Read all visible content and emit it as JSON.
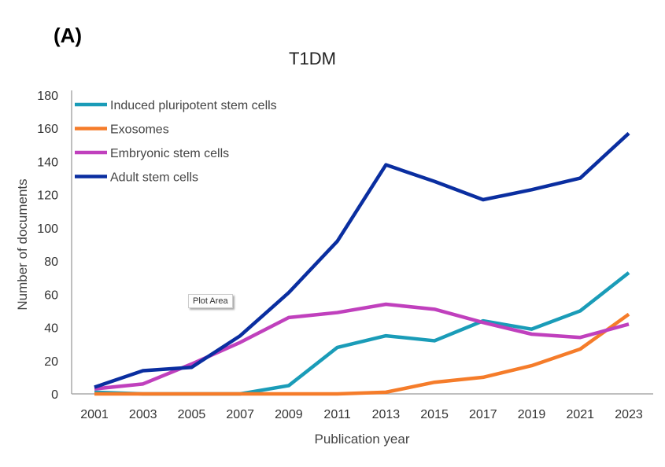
{
  "panel_label": "(A)",
  "tooltip": "Plot Area",
  "chart_data": {
    "type": "line",
    "title": "T1DM",
    "xlabel": "Publication year",
    "ylabel": "Number of documents",
    "x": [
      2001,
      2003,
      2005,
      2007,
      2009,
      2011,
      2013,
      2015,
      2017,
      2019,
      2021,
      2023
    ],
    "ylim": [
      0,
      180
    ],
    "yticks": [
      0,
      20,
      40,
      60,
      80,
      100,
      120,
      140,
      160,
      180
    ],
    "grid": false,
    "legend_position": "top-left",
    "series": [
      {
        "name": "Induced pluripotent stem cells",
        "color": "#1a9cb8",
        "values": [
          1,
          0,
          0,
          0,
          5,
          28,
          35,
          32,
          44,
          39,
          50,
          73
        ]
      },
      {
        "name": "Exosomes",
        "color": "#f57c2a",
        "values": [
          0,
          0,
          0,
          0,
          0,
          0,
          1,
          7,
          10,
          17,
          27,
          48
        ]
      },
      {
        "name": "Embryonic stem cells",
        "color": "#c040bd",
        "values": [
          3,
          6,
          18,
          31,
          46,
          49,
          54,
          51,
          43,
          36,
          34,
          42
        ]
      },
      {
        "name": "Adult stem cells",
        "color": "#0a2ea0",
        "values": [
          4,
          14,
          16,
          35,
          61,
          92,
          138,
          128,
          117,
          123,
          130,
          157
        ]
      }
    ]
  }
}
